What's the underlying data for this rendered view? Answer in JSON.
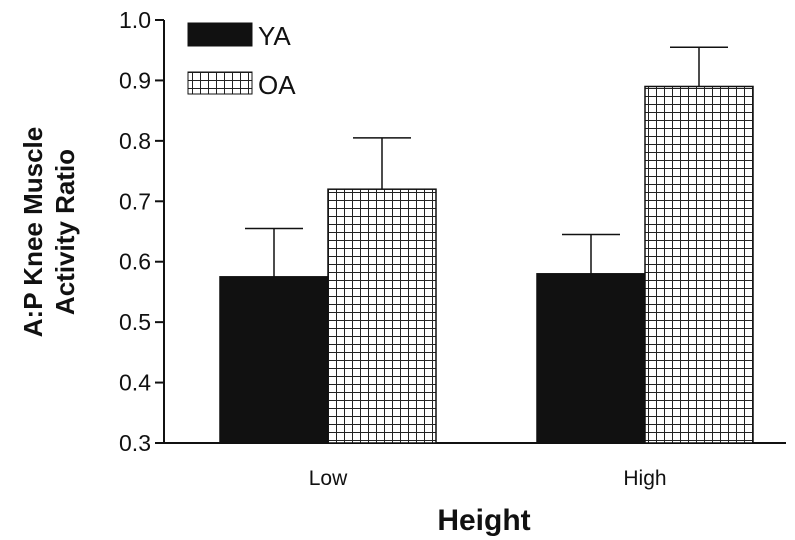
{
  "chart_data": {
    "type": "bar",
    "title": "",
    "xlabel": "Height",
    "ylabel": [
      "A:P Knee Muscle",
      "Activity Ratio"
    ],
    "categories": [
      "Low",
      "High"
    ],
    "series": [
      {
        "name": "YA",
        "values": [
          0.575,
          0.58
        ],
        "errors": [
          0.08,
          0.065
        ],
        "color": "#111111",
        "fill": "solid"
      },
      {
        "name": "OA",
        "values": [
          0.72,
          0.89
        ],
        "errors": [
          0.085,
          0.065
        ],
        "color": "#ffffff",
        "fill": "grid"
      }
    ],
    "ylim": [
      0.3,
      1.0
    ],
    "yticks": [
      "0.3",
      "0.4",
      "0.5",
      "0.6",
      "0.7",
      "0.8",
      "0.9",
      "1.0"
    ],
    "legend_position": "top-left",
    "grid": false
  }
}
